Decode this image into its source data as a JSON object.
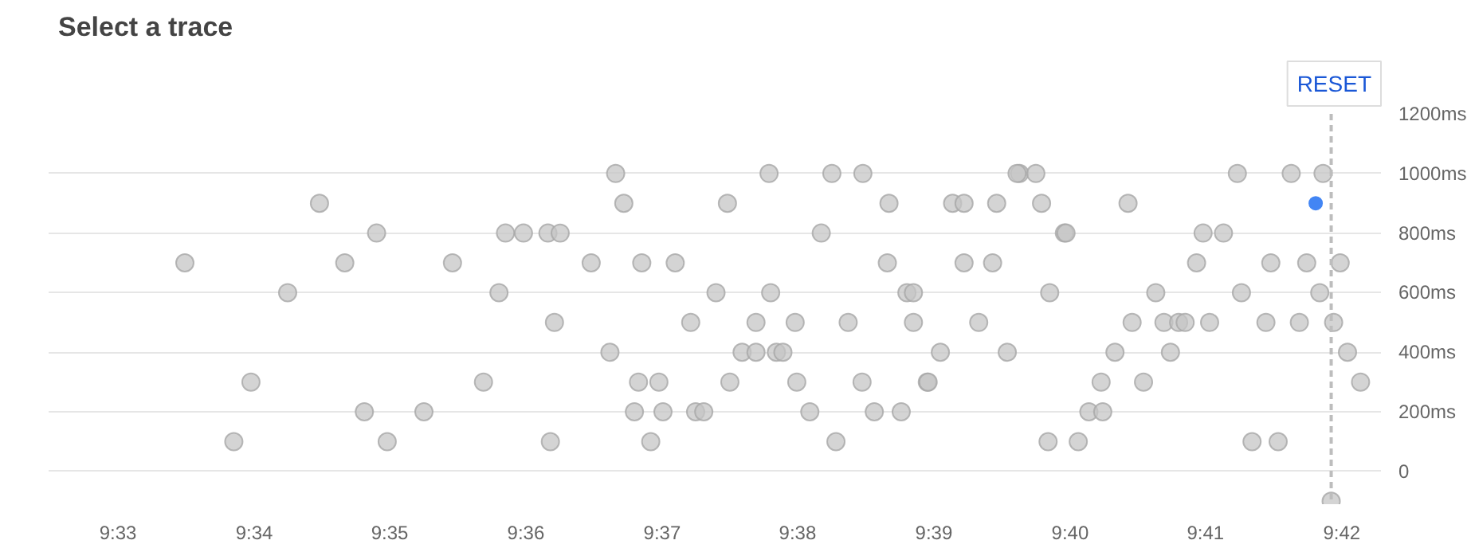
{
  "chart_data": {
    "type": "scatter",
    "title": "Select a trace",
    "annotations": [
      "RESET"
    ],
    "grid": "y",
    "marker": "circle",
    "xlim": [
      9.5415,
      9.7048
    ],
    "ylim": [
      -110,
      1200
    ],
    "xticks": [
      {
        "value": 9.55,
        "label": "9:33"
      },
      {
        "value": 9.5667,
        "label": "9:34"
      },
      {
        "value": 9.5833,
        "label": "9:35"
      },
      {
        "value": 9.6,
        "label": "9:36"
      },
      {
        "value": 9.6167,
        "label": "9:37"
      },
      {
        "value": 9.6333,
        "label": "9:38"
      },
      {
        "value": 9.65,
        "label": "9:39"
      },
      {
        "value": 9.6667,
        "label": "9:40"
      },
      {
        "value": 9.6833,
        "label": "9:41"
      },
      {
        "value": 9.7,
        "label": "9:42"
      }
    ],
    "yticks": [
      0,
      {
        "value": 200,
        "label": "200ms"
      },
      {
        "value": 400,
        "label": "400ms"
      },
      {
        "value": 600,
        "label": "600ms"
      },
      {
        "value": 800,
        "label": "800ms"
      },
      {
        "value": 1000,
        "label": "1000ms"
      },
      {
        "value": 1200,
        "label": "1200ms"
      }
    ],
    "ref_lines": [
      {
        "axis": "x",
        "value": 9.6987,
        "color": "#bdbdbd",
        "line_style": "dashed"
      }
    ],
    "series": [
      {
        "color": "#c6c6c6",
        "x": [
          9.5582,
          9.5747,
          9.5817,
          9.5778,
          9.5708,
          9.591,
          9.5975,
          9.5967,
          9.5663,
          9.5948,
          9.5802,
          9.5875,
          9.5642,
          9.583,
          9.611,
          9.612,
          9.5997,
          9.6027,
          9.6042,
          9.608,
          9.6142,
          9.6183,
          9.6035,
          9.6103,
          9.6138,
          9.6163,
          9.6133,
          9.6168,
          9.6208,
          9.6218,
          9.603,
          9.6153,
          9.6247,
          9.6298,
          9.6375,
          9.6413,
          9.6445,
          9.6523,
          9.6537,
          9.6362,
          9.6443,
          9.6537,
          9.6233,
          9.63,
          9.6467,
          9.6475,
          9.6202,
          9.6282,
          9.633,
          9.6395,
          9.6475,
          9.6555,
          9.6265,
          9.6282,
          9.6307,
          9.6315,
          9.6508,
          9.625,
          9.6332,
          9.6412,
          9.6492,
          9.6493,
          9.6348,
          9.6427,
          9.646,
          9.638,
          9.6605,
          9.6602,
          9.6625,
          9.6872,
          9.6938,
          9.6977,
          9.6577,
          9.6632,
          9.6738,
          9.666,
          9.6662,
          9.683,
          9.6855,
          9.6572,
          9.6822,
          9.6913,
          9.6957,
          9.6998,
          9.6642,
          9.6772,
          9.6877,
          9.6973,
          9.6743,
          9.6782,
          9.68,
          9.6808,
          9.6838,
          9.6907,
          9.6948,
          9.699,
          9.659,
          9.6722,
          9.679,
          9.7007,
          9.6705,
          9.6757,
          9.7023,
          9.669,
          9.6707,
          9.664,
          9.6677,
          9.689,
          9.6922,
          9.6987
        ],
        "values": [
          700,
          900,
          800,
          700,
          600,
          700,
          800,
          600,
          300,
          300,
          200,
          200,
          100,
          100,
          1000,
          900,
          800,
          800,
          800,
          700,
          700,
          700,
          500,
          400,
          300,
          300,
          200,
          200,
          200,
          200,
          100,
          100,
          900,
          1000,
          1000,
          1000,
          900,
          900,
          900,
          800,
          700,
          700,
          600,
          600,
          600,
          600,
          500,
          500,
          500,
          500,
          500,
          500,
          400,
          400,
          400,
          400,
          400,
          300,
          300,
          300,
          300,
          300,
          200,
          200,
          200,
          100,
          1000,
          1000,
          1000,
          1000,
          1000,
          1000,
          900,
          900,
          900,
          800,
          800,
          800,
          800,
          700,
          700,
          700,
          700,
          700,
          600,
          600,
          600,
          600,
          500,
          500,
          500,
          500,
          500,
          500,
          500,
          500,
          400,
          400,
          400,
          400,
          300,
          300,
          300,
          200,
          200,
          100,
          100,
          100,
          100,
          -100
        ]
      },
      {
        "color": "#4285f4",
        "x": [
          9.6968
        ],
        "values": [
          900
        ]
      }
    ]
  }
}
